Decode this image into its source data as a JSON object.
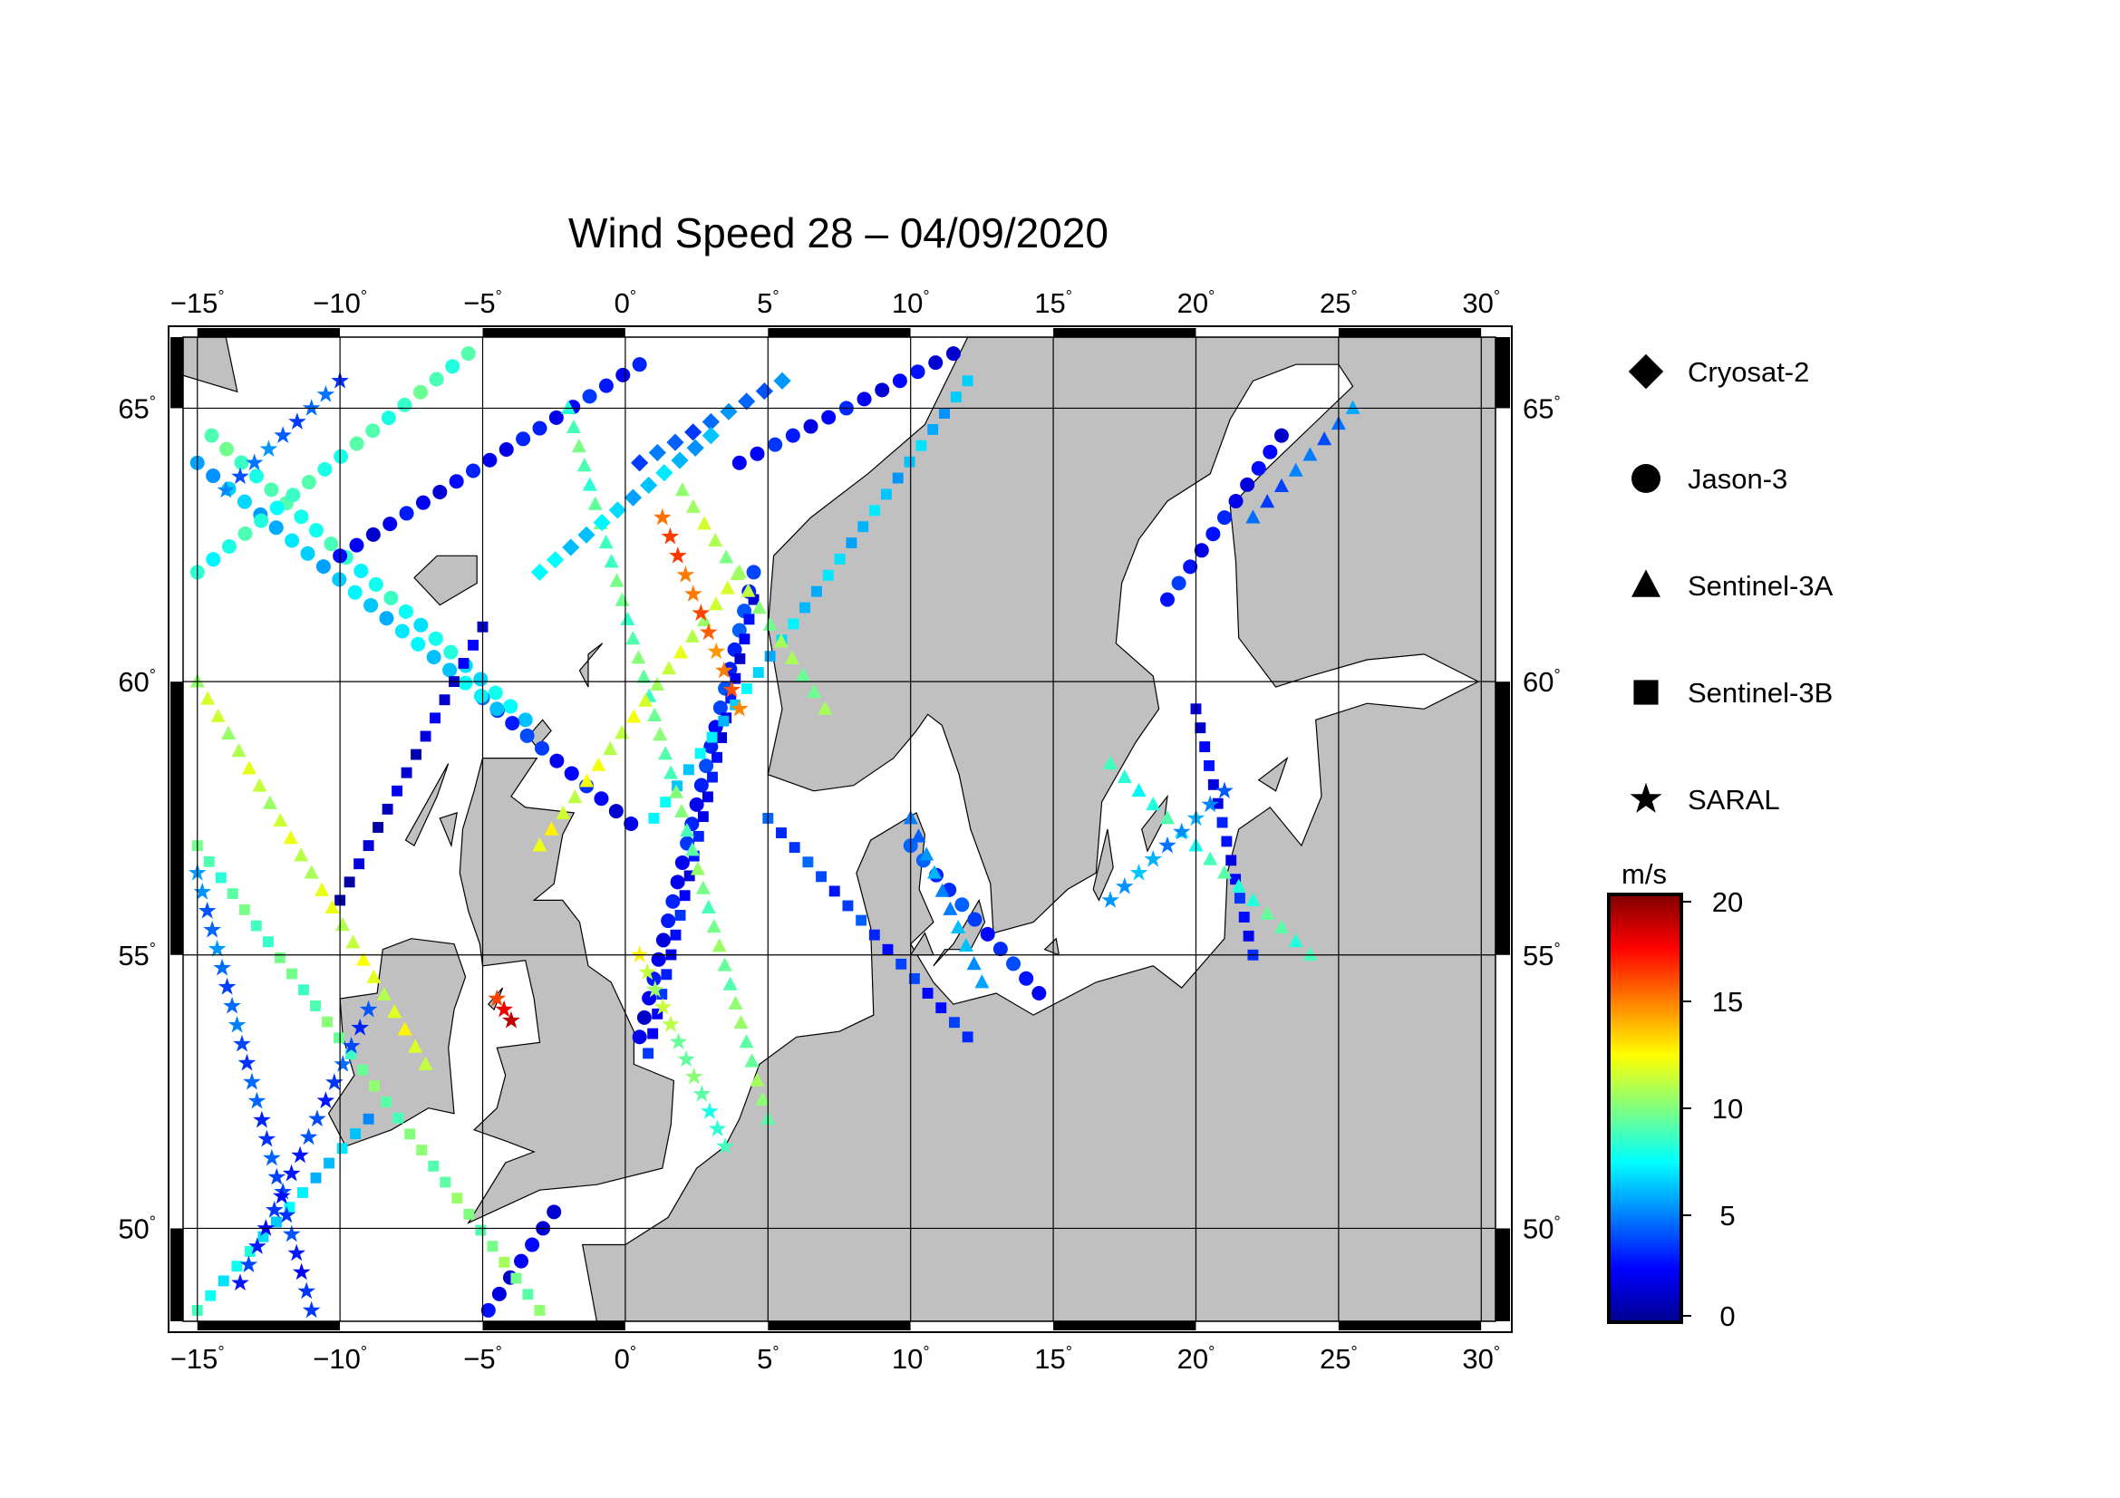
{
  "title": "Wind Speed 28 – 04/09/2020",
  "map": {
    "lon_range": [
      -15.5,
      30.5
    ],
    "lat_range": [
      48.3,
      66.3
    ],
    "lon_ticks": [
      -15,
      -10,
      -5,
      0,
      5,
      10,
      15,
      20,
      25,
      30
    ],
    "lon_tick_labels": [
      "−15",
      "−10",
      "−5",
      "0",
      "5",
      "10",
      "15",
      "20",
      "25",
      "30"
    ],
    "lat_ticks": [
      50,
      55,
      60,
      65
    ],
    "lat_tick_labels": [
      "50",
      "55",
      "60",
      "65"
    ],
    "degree_symbol": "°",
    "grid": true,
    "land_color": "#c0c0c0",
    "sea_color": "#ffffff"
  },
  "legend": {
    "satellites": [
      {
        "name": "Cryosat-2",
        "marker": "diamond"
      },
      {
        "name": "Jason-3",
        "marker": "circle"
      },
      {
        "name": "Sentinel-3A",
        "marker": "triangle"
      },
      {
        "name": "Sentinel-3B",
        "marker": "square"
      },
      {
        "name": "SARAL",
        "marker": "star"
      }
    ]
  },
  "colorbar": {
    "unit": "m/s",
    "range": [
      0,
      20
    ],
    "ticks": [
      0,
      5,
      10,
      15,
      20
    ],
    "tick_labels": [
      "0",
      "5",
      "10",
      "15",
      "20"
    ],
    "colormap": [
      "#00008f",
      "#0000ff",
      "#0080ff",
      "#00ffff",
      "#80ff80",
      "#ffff00",
      "#ff8000",
      "#ff0000",
      "#800000"
    ]
  },
  "chart_data": {
    "type": "scatter",
    "title": "Wind Speed 28 – 04/09/2020",
    "xlabel": "",
    "ylabel": "",
    "xlim": [
      -15.5,
      30.5
    ],
    "ylim": [
      48.3,
      66.3
    ],
    "value_unit": "m/s",
    "tracks": [
      {
        "satellite": "Jason-3",
        "marker": "circle",
        "lon": [
          -14.5,
          -3.5
        ],
        "lat": [
          64.5,
          59.3
        ],
        "speed": [
          9,
          7
        ]
      },
      {
        "satellite": "Jason-3",
        "marker": "circle",
        "lon": [
          -10,
          0.5
        ],
        "lat": [
          62.3,
          65.8
        ],
        "speed": [
          2,
          3
        ]
      },
      {
        "satellite": "Jason-3",
        "marker": "circle",
        "lon": [
          -5,
          0.2
        ],
        "lat": [
          59.7,
          57.4
        ],
        "speed": [
          4,
          2
        ]
      },
      {
        "satellite": "Jason-3",
        "marker": "circle",
        "lon": [
          0.5,
          4.5
        ],
        "lat": [
          53.5,
          62.0
        ],
        "speed": [
          2,
          4
        ]
      },
      {
        "satellite": "Jason-3",
        "marker": "circle",
        "lon": [
          4.0,
          11.5
        ],
        "lat": [
          64.0,
          66.0
        ],
        "speed": [
          3,
          2
        ]
      },
      {
        "satellite": "Jason-3",
        "marker": "circle",
        "lon": [
          -4.5,
          -15
        ],
        "lat": [
          59.5,
          64.0
        ],
        "speed": [
          7,
          6
        ]
      },
      {
        "satellite": "Jason-3",
        "marker": "circle",
        "lon": [
          19,
          23
        ],
        "lat": [
          61.5,
          64.5
        ],
        "speed": [
          3,
          2
        ]
      },
      {
        "satellite": "Jason-3",
        "marker": "circle",
        "lon": [
          10,
          14.5
        ],
        "lat": [
          57.0,
          54.3
        ],
        "speed": [
          4,
          3
        ]
      },
      {
        "satellite": "Jason-3",
        "marker": "circle",
        "lon": [
          -4.8,
          -2.5
        ],
        "lat": [
          48.5,
          50.3
        ],
        "speed": [
          2,
          2
        ]
      },
      {
        "satellite": "Jason-3",
        "marker": "circle",
        "lon": [
          -15,
          -5.5
        ],
        "lat": [
          62.0,
          66.0
        ],
        "speed": [
          8,
          9
        ]
      },
      {
        "satellite": "Sentinel-3B",
        "marker": "square",
        "lon": [
          -10,
          -5
        ],
        "lat": [
          56.0,
          61.0
        ],
        "speed": [
          1,
          2
        ]
      },
      {
        "satellite": "Sentinel-3B",
        "marker": "square",
        "lon": [
          -9,
          -15
        ],
        "lat": [
          52.0,
          48.5
        ],
        "speed": [
          6,
          8
        ]
      },
      {
        "satellite": "Sentinel-3B",
        "marker": "square",
        "lon": [
          4.5,
          0.8
        ],
        "lat": [
          61.5,
          53.2
        ],
        "speed": [
          2,
          3
        ]
      },
      {
        "satellite": "Sentinel-3B",
        "marker": "square",
        "lon": [
          1.0,
          12.0
        ],
        "lat": [
          57.5,
          65.5
        ],
        "speed": [
          7,
          6
        ]
      },
      {
        "satellite": "Sentinel-3B",
        "marker": "square",
        "lon": [
          -15,
          -3
        ],
        "lat": [
          57.0,
          48.5
        ],
        "speed": [
          9,
          10
        ]
      },
      {
        "satellite": "Sentinel-3B",
        "marker": "square",
        "lon": [
          5,
          12
        ],
        "lat": [
          57.5,
          53.5
        ],
        "speed": [
          4,
          3
        ]
      },
      {
        "satellite": "Sentinel-3B",
        "marker": "square",
        "lon": [
          20,
          22
        ],
        "lat": [
          59.5,
          55.0
        ],
        "speed": [
          2,
          3
        ]
      },
      {
        "satellite": "Sentinel-3A",
        "marker": "triangle",
        "lon": [
          -2,
          5
        ],
        "lat": [
          65.0,
          52.0
        ],
        "speed": [
          9,
          10
        ]
      },
      {
        "satellite": "Sentinel-3A",
        "marker": "triangle",
        "lon": [
          -15,
          -7
        ],
        "lat": [
          60.0,
          53.0
        ],
        "speed": [
          11,
          12
        ]
      },
      {
        "satellite": "Sentinel-3A",
        "marker": "triangle",
        "lon": [
          -3,
          4
        ],
        "lat": [
          57.0,
          62.0
        ],
        "speed": [
          12,
          11
        ]
      },
      {
        "satellite": "Sentinel-3A",
        "marker": "triangle",
        "lon": [
          17,
          24
        ],
        "lat": [
          58.5,
          55.0
        ],
        "speed": [
          8,
          9
        ]
      },
      {
        "satellite": "Sentinel-3A",
        "marker": "triangle",
        "lon": [
          22,
          25.5
        ],
        "lat": [
          63.0,
          65.0
        ],
        "speed": [
          4,
          5
        ]
      },
      {
        "satellite": "Sentinel-3A",
        "marker": "triangle",
        "lon": [
          10,
          12.5
        ],
        "lat": [
          57.5,
          54.5
        ],
        "speed": [
          5,
          6
        ]
      },
      {
        "satellite": "Sentinel-3A",
        "marker": "triangle",
        "lon": [
          2,
          7
        ],
        "lat": [
          63.5,
          59.5
        ],
        "speed": [
          11,
          10
        ]
      },
      {
        "satellite": "SARAL",
        "marker": "star",
        "lon": [
          1.3,
          4.0
        ],
        "lat": [
          63.0,
          59.5
        ],
        "speed": [
          16,
          15
        ]
      },
      {
        "satellite": "SARAL",
        "marker": "star",
        "lon": [
          -13.5,
          -9
        ],
        "lat": [
          49.0,
          54.0
        ],
        "speed": [
          3,
          4
        ]
      },
      {
        "satellite": "SARAL",
        "marker": "star",
        "lon": [
          -15,
          -11
        ],
        "lat": [
          56.5,
          48.5
        ],
        "speed": [
          5,
          3
        ]
      },
      {
        "satellite": "SARAL",
        "marker": "star",
        "lon": [
          0.5,
          3.5
        ],
        "lat": [
          55.0,
          51.5
        ],
        "speed": [
          12,
          8
        ]
      },
      {
        "satellite": "SARAL",
        "marker": "star",
        "lon": [
          -14,
          -10
        ],
        "lat": [
          63.5,
          65.5
        ],
        "speed": [
          5,
          4
        ]
      },
      {
        "satellite": "SARAL",
        "marker": "star",
        "lon": [
          17,
          21
        ],
        "lat": [
          56.0,
          58.0
        ],
        "speed": [
          6,
          5
        ]
      },
      {
        "satellite": "SARAL",
        "marker": "star",
        "lon": [
          -4.5,
          -4.0
        ],
        "lat": [
          54.2,
          53.8
        ],
        "speed": [
          17,
          18
        ]
      },
      {
        "satellite": "Cryosat-2",
        "marker": "diamond",
        "lon": [
          0.5,
          5.5
        ],
        "lat": [
          64.0,
          65.5
        ],
        "speed": [
          4,
          5
        ]
      },
      {
        "satellite": "Cryosat-2",
        "marker": "diamond",
        "lon": [
          -3,
          3
        ],
        "lat": [
          62.0,
          64.5
        ],
        "speed": [
          7,
          6
        ]
      }
    ]
  }
}
